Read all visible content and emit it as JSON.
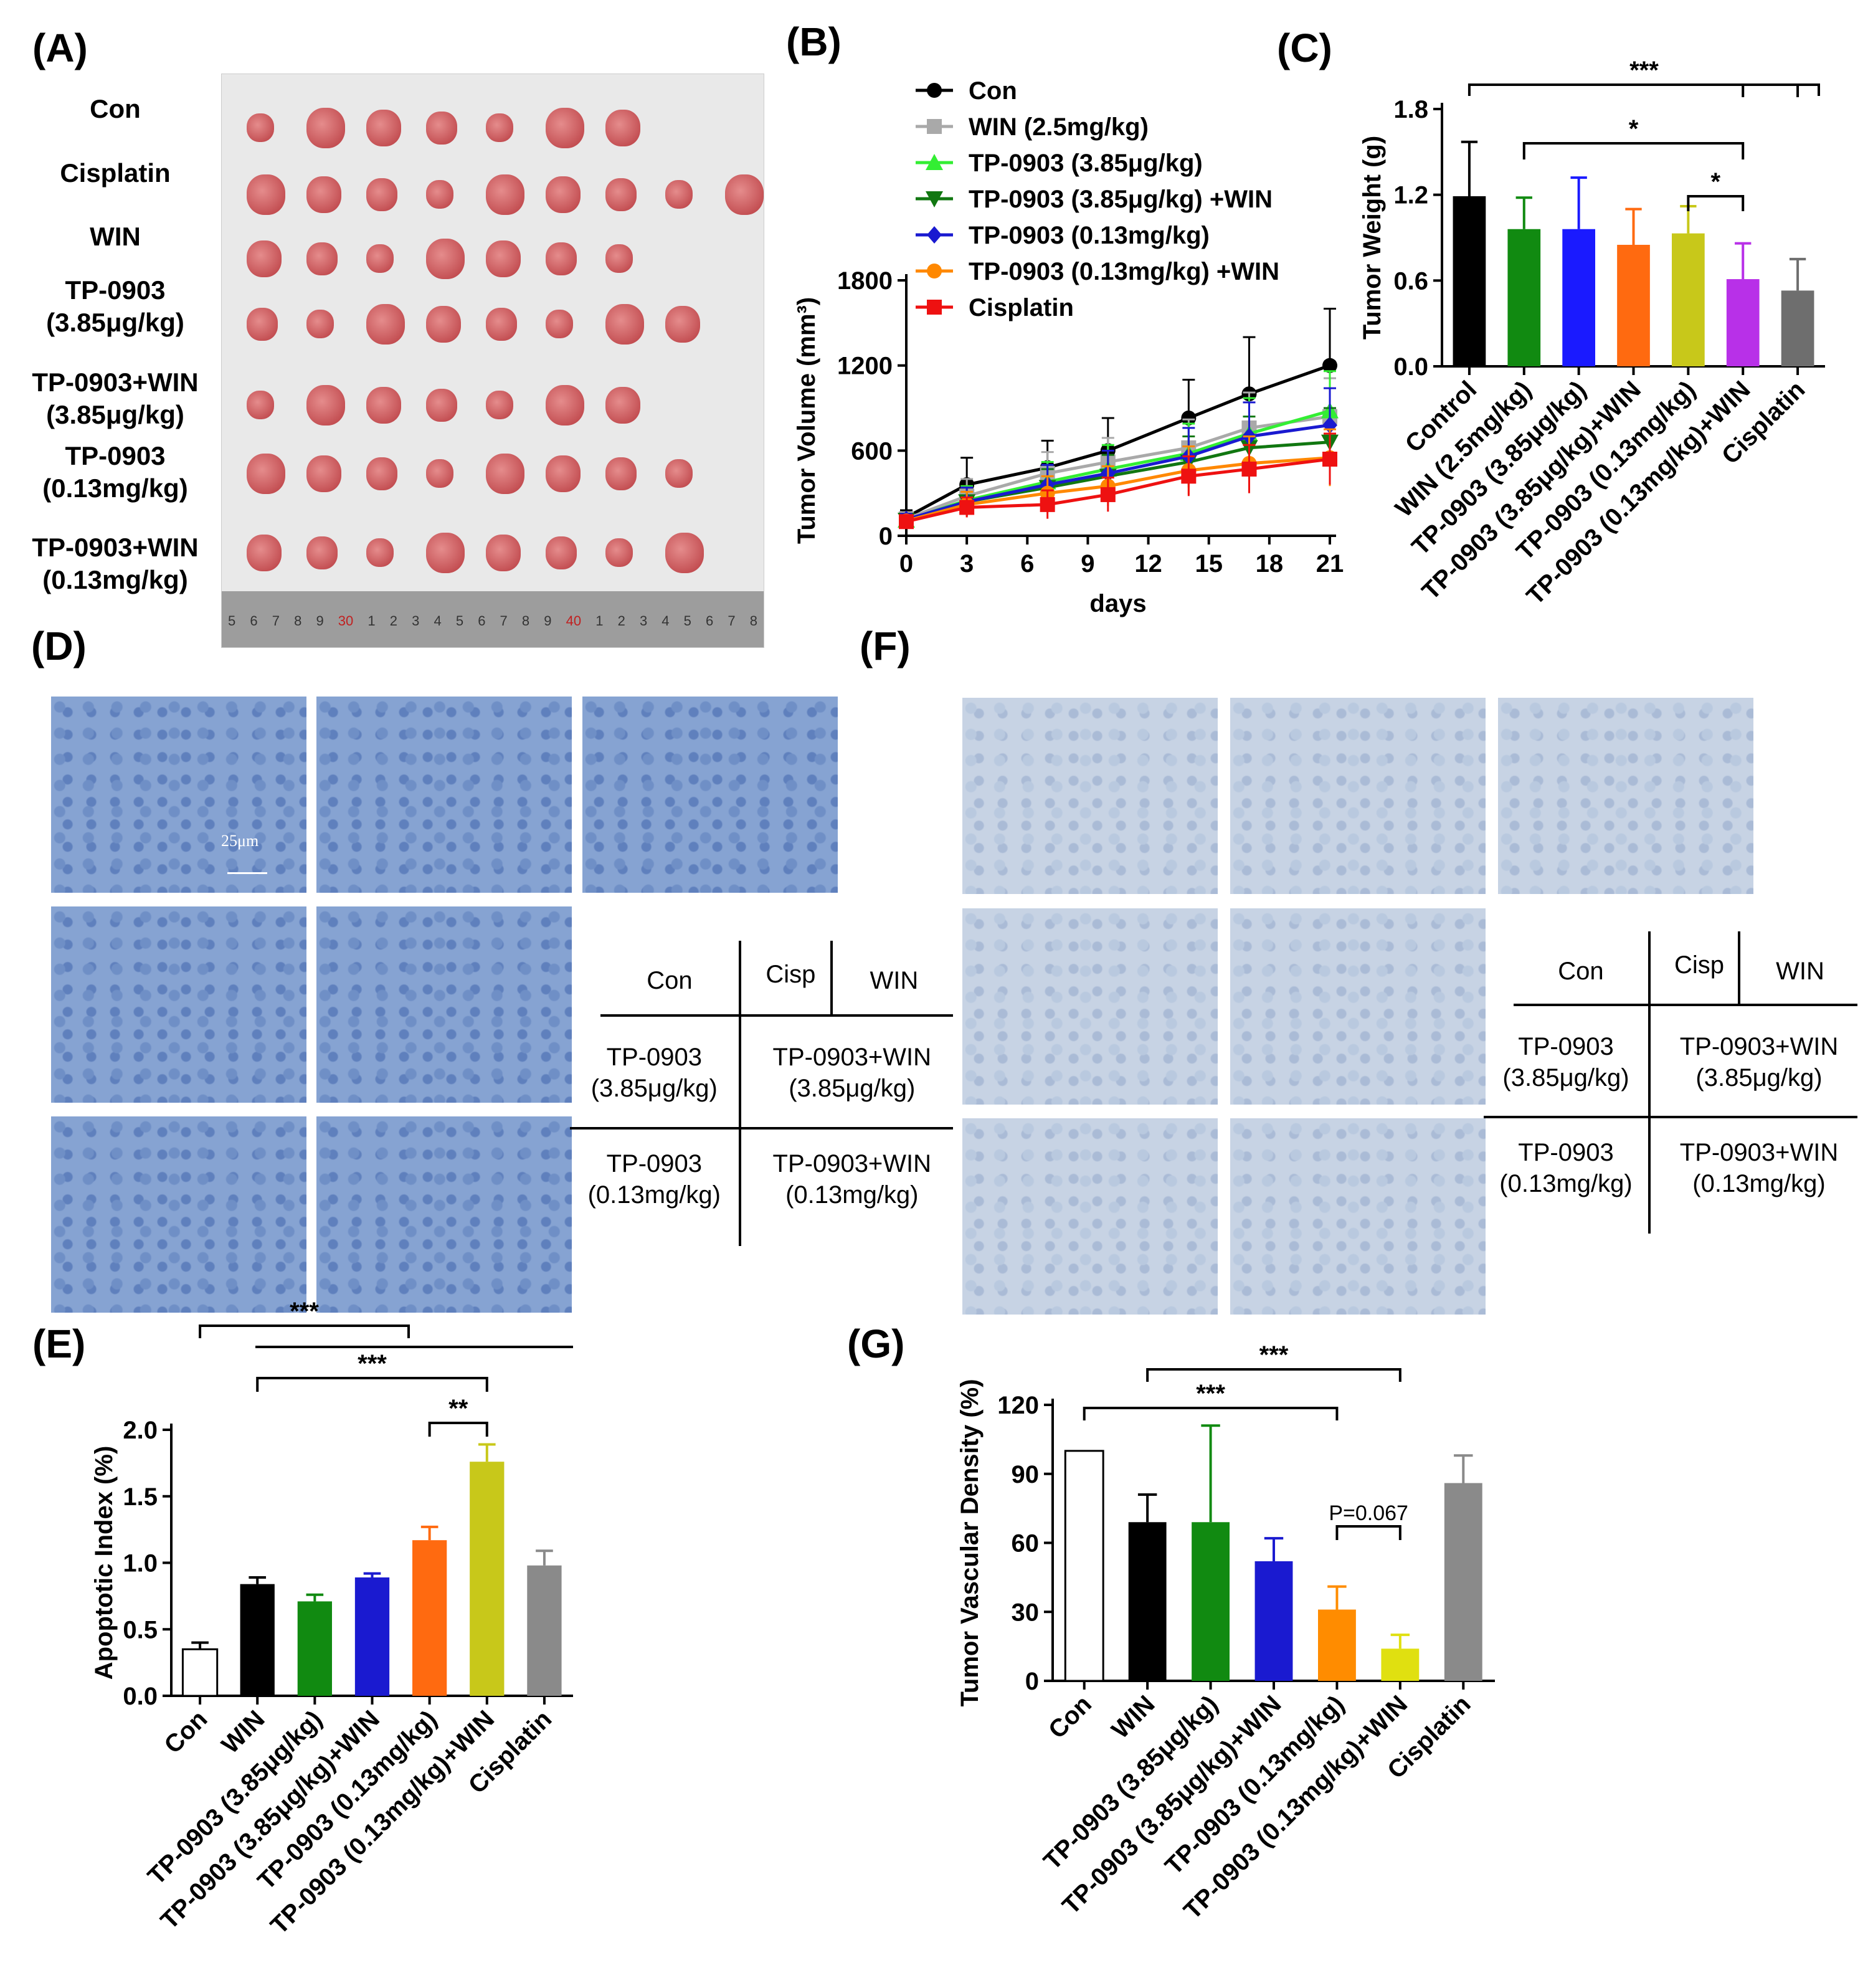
{
  "panels": {
    "A": "(A)",
    "B": "(B)",
    "C": "(C)",
    "D": "(D)",
    "E": "(E)",
    "F": "(F)",
    "G": "(G)"
  },
  "photo": {
    "rows": [
      {
        "label": "Con",
        "count": 7
      },
      {
        "label": "Cisplatin",
        "count": 9
      },
      {
        "label": "WIN",
        "count": 7
      },
      {
        "label": "TP-0903\n(3.85μg/kg)",
        "count": 8
      },
      {
        "label": "TP-0903+WIN\n(3.85μg/kg)",
        "count": 7
      },
      {
        "label": "TP-0903\n(0.13mg/kg)",
        "count": 8
      },
      {
        "label": "TP-0903+WIN\n(0.13mg/kg)",
        "count": 8
      }
    ],
    "ruler": [
      "5",
      "6",
      "7",
      "8",
      "9",
      "30",
      "1",
      "2",
      "3",
      "4",
      "5",
      "6",
      "7",
      "8",
      "9",
      "40",
      "1",
      "2",
      "3",
      "4",
      "5",
      "6",
      "7",
      "8"
    ]
  },
  "chart_data": [
    {
      "panel": "B",
      "type": "line",
      "xlabel": "days",
      "ylabel": "Tumor Volume (mm³)",
      "x": [
        0,
        3,
        7,
        10,
        14,
        17,
        21
      ],
      "xticks": [
        0,
        3,
        6,
        9,
        12,
        15,
        18,
        21
      ],
      "yticks": [
        0,
        600,
        1200,
        1800
      ],
      "xlim": [
        0,
        21
      ],
      "ylim": [
        0,
        1800
      ],
      "series": [
        {
          "name": "Con",
          "color": "#000000",
          "marker": "circle",
          "values": [
            130,
            360,
            480,
            600,
            830,
            1000,
            1200
          ],
          "err": [
            50,
            190,
            190,
            230,
            270,
            400,
            400
          ]
        },
        {
          "name": "WIN (2.5mg/kg)",
          "color": "#a9a9a9",
          "marker": "square",
          "values": [
            120,
            280,
            440,
            520,
            620,
            760,
            840
          ],
          "err": [
            40,
            120,
            150,
            170,
            200,
            250,
            270
          ]
        },
        {
          "name": "TP-0903 (3.85μg/kg)",
          "color": "#33ee33",
          "marker": "triangle",
          "values": [
            110,
            250,
            380,
            470,
            580,
            720,
            880
          ],
          "err": [
            40,
            100,
            140,
            170,
            210,
            250,
            280
          ]
        },
        {
          "name": "TP-0903 (3.85μg/kg) +WIN",
          "color": "#117711",
          "marker": "triangle-down",
          "values": [
            110,
            240,
            340,
            420,
            520,
            620,
            660
          ],
          "err": [
            40,
            100,
            130,
            150,
            180,
            220,
            240
          ]
        },
        {
          "name": "TP-0903 (0.13mg/kg)",
          "color": "#1a1ad0",
          "marker": "diamond",
          "values": [
            115,
            240,
            360,
            440,
            560,
            700,
            780
          ],
          "err": [
            40,
            100,
            140,
            160,
            200,
            240,
            260
          ]
        },
        {
          "name": "TP-0903 (0.13mg/kg) +WIN",
          "color": "#ff8800",
          "marker": "circle",
          "values": [
            105,
            220,
            300,
            350,
            460,
            510,
            550
          ],
          "err": [
            35,
            90,
            120,
            140,
            170,
            190,
            200
          ]
        },
        {
          "name": "Cisplatin",
          "color": "#ee1111",
          "marker": "square",
          "values": [
            100,
            200,
            220,
            290,
            420,
            470,
            540
          ],
          "err": [
            30,
            70,
            100,
            120,
            140,
            170,
            180
          ]
        }
      ]
    },
    {
      "panel": "C",
      "type": "bar",
      "ylabel": "Tumor Weight  (g)",
      "yticks": [
        "0.0",
        "0.6",
        "1.2",
        "1.8"
      ],
      "ylim": [
        0,
        1.8
      ],
      "categories": [
        "Control",
        "WIN (2.5mg/kg)",
        "TP-0903 (3.85μg/kg)",
        "TP-0903 (3.85μg/kg)+WIN",
        "TP-0903 (0.13mg/kg)",
        "TP-0903 (0.13mg/kg)+WIN",
        "Cisplatin"
      ],
      "values": [
        1.19,
        0.96,
        0.96,
        0.85,
        0.93,
        0.61,
        0.53
      ],
      "err": [
        0.38,
        0.22,
        0.36,
        0.25,
        0.19,
        0.25,
        0.22
      ],
      "colors": [
        "#000000",
        "#118a11",
        "#1a1aff",
        "#ff6a10",
        "#c8c81a",
        "#b830e8",
        "#6e6e6e"
      ],
      "significance": [
        "***",
        "*",
        "*"
      ]
    },
    {
      "panel": "E",
      "type": "bar",
      "ylabel": "Apoptotic Index (%)",
      "yticks": [
        "0.0",
        "0.5",
        "1.0",
        "1.5",
        "2.0"
      ],
      "ylim": [
        0,
        2.0
      ],
      "categories": [
        "Con",
        "WIN",
        "TP-0903 (3.85μg/kg)",
        "TP-0903 (3.85μg/kg)+WIN",
        "TP-0903 (0.13mg/kg)",
        "TP-0903 (0.13mg/kg)+WIN",
        "Cisplatin"
      ],
      "values": [
        0.35,
        0.84,
        0.71,
        0.89,
        1.17,
        1.76,
        0.98
      ],
      "err": [
        0.05,
        0.05,
        0.05,
        0.03,
        0.1,
        0.13,
        0.11
      ],
      "colors": [
        "#ffffff",
        "#000000",
        "#118a11",
        "#1a1ad0",
        "#ff6a10",
        "#c8c81a",
        "#8a8a8a"
      ],
      "significance": [
        "***",
        "***",
        "**"
      ]
    },
    {
      "panel": "G",
      "type": "bar",
      "ylabel": "Tumor Vascular Density (%)",
      "yticks": [
        "0",
        "30",
        "60",
        "90",
        "120"
      ],
      "ylim": [
        0,
        120
      ],
      "categories": [
        "Con",
        "WIN",
        "TP-0903 (3.85μg/kg)",
        "TP-0903 (3.85μg/kg)+WIN",
        "TP-0903 (0.13mg/kg)",
        "TP-0903 (0.13mg/kg)+WIN",
        "Cisplatin"
      ],
      "values": [
        100,
        69,
        69,
        52,
        31,
        14,
        86
      ],
      "err": [
        0,
        12,
        42,
        10,
        10,
        6,
        12
      ],
      "colors": [
        "#ffffff",
        "#000000",
        "#118a11",
        "#1a1ad0",
        "#ff8c00",
        "#e0e010",
        "#8a8a8a"
      ],
      "significance": [
        "***",
        "***",
        "P=0.067"
      ]
    }
  ],
  "legend_layout": {
    "D": {
      "cells": [
        "Con",
        "Cisp",
        "WIN",
        "TP-0903\n(3.85μg/kg)",
        "TP-0903+WIN\n(3.85μg/kg)",
        "TP-0903\n(0.13mg/kg)",
        "TP-0903+WIN\n(0.13mg/kg)"
      ],
      "scale": "25μm"
    },
    "F": {
      "cells": [
        "Con",
        "Cisp",
        "WIN",
        "TP-0903\n(3.85μg/kg)",
        "TP-0903+WIN\n(3.85μg/kg)",
        "TP-0903\n(0.13mg/kg)",
        "TP-0903+WIN\n(0.13mg/kg)"
      ]
    }
  }
}
